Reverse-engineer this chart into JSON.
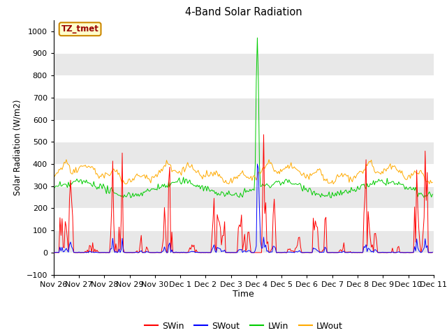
{
  "title": "4-Band Solar Radiation",
  "xlabel": "Time",
  "ylabel": "Solar Radiation (W/m2)",
  "ylim": [
    -100,
    1050
  ],
  "yticks": [
    -100,
    0,
    100,
    200,
    300,
    400,
    500,
    600,
    700,
    800,
    900,
    1000
  ],
  "annotation_text": "TZ_tmet",
  "annotation_bg": "#ffffcc",
  "annotation_border": "#cc8800",
  "annotation_text_color": "#990000",
  "colors": {
    "SWin": "#ff0000",
    "SWout": "#0000ff",
    "LWin": "#00cc00",
    "LWout": "#ffaa00"
  },
  "band_colors": [
    "#ffffff",
    "#e8e8e8"
  ],
  "legend_labels": [
    "SWin",
    "SWout",
    "LWin",
    "LWout"
  ],
  "n_points": 360,
  "x_tick_labels": [
    "Nov 26",
    "Nov 27",
    "Nov 28",
    "Nov 29",
    "Nov 30",
    "Dec 1",
    "Dec 2",
    "Dec 3",
    "Dec 4",
    "Dec 5",
    "Dec 6",
    "Dec 7",
    "Dec 8",
    "Dec 9",
    "Dec 10",
    "Dec 11"
  ],
  "x_tick_positions": [
    0,
    24,
    48,
    72,
    96,
    120,
    144,
    168,
    192,
    216,
    240,
    264,
    288,
    312,
    336,
    360
  ]
}
